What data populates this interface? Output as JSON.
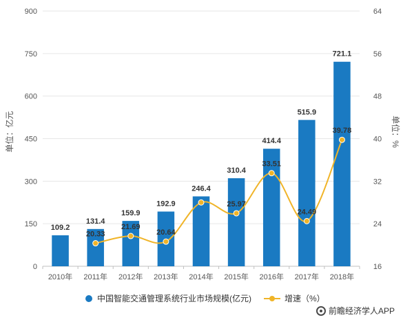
{
  "chart_data": {
    "type": "bar+line",
    "categories": [
      "2010年",
      "2011年",
      "2012年",
      "2013年",
      "2014年",
      "2015年",
      "2016年",
      "2017年",
      "2018年"
    ],
    "series": [
      {
        "name": "中国智能交通管理系统行业市场规模(亿元)",
        "type": "bar",
        "axis": "left",
        "color": "#1a7ac2",
        "values": [
          109.2,
          131.4,
          159.9,
          192.9,
          246.4,
          310.4,
          414.4,
          515.9,
          721.1
        ],
        "labels": [
          "109.2",
          "131.4",
          "159.9",
          "192.9",
          "246.4",
          "310.4",
          "414.4",
          "515.9",
          "721.1"
        ]
      },
      {
        "name": "增速（%）",
        "type": "line",
        "axis": "right",
        "color": "#f0b428",
        "values": [
          null,
          20.33,
          21.69,
          20.64,
          28.0,
          25.97,
          33.51,
          24.49,
          39.78
        ],
        "labels": [
          "",
          "20.33",
          "21.69",
          "20.64",
          "",
          "25.97",
          "33.51",
          "24.49",
          "39.78"
        ]
      }
    ],
    "y_left": {
      "label": "单位：亿元",
      "ylim": [
        0,
        900
      ],
      "ticks": [
        "0",
        "150",
        "300",
        "450",
        "600",
        "750",
        "900"
      ]
    },
    "y_right": {
      "label": "单位：%",
      "ylim": [
        16,
        64
      ],
      "ticks": [
        "16",
        "24",
        "32",
        "40",
        "48",
        "56",
        "64"
      ]
    },
    "grid": true,
    "legend_position": "bottom"
  },
  "source": "前瞻经济学人APP"
}
